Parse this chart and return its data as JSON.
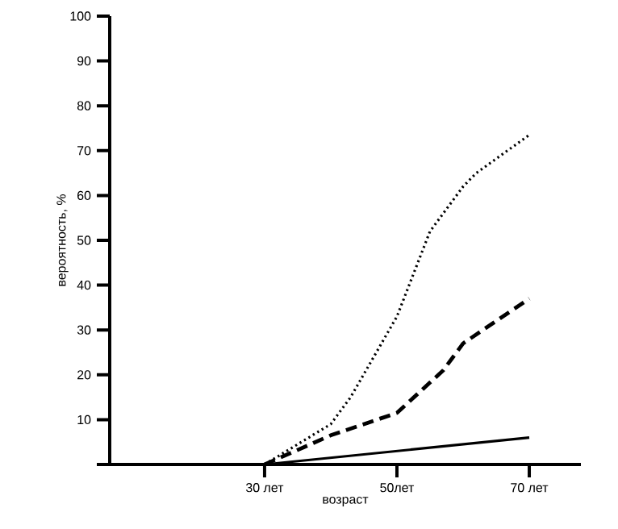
{
  "chart_data": {
    "type": "line",
    "xlabel": "возраст",
    "ylabel": "вероятность, %",
    "xlim": [
      6.6,
      77.8
    ],
    "ylim": [
      0,
      100
    ],
    "xticks": [
      {
        "value": 30,
        "label": "30 лет"
      },
      {
        "value": 50,
        "label": "50лет"
      },
      {
        "value": 70,
        "label": "70 лет"
      }
    ],
    "yticks": [
      {
        "value": 0,
        "label": null
      },
      10,
      20,
      30,
      40,
      50,
      60,
      70,
      80,
      90,
      100
    ],
    "series": [
      {
        "x": [
          30,
          50,
          70
        ],
        "values": [
          0,
          3,
          6
        ],
        "color": "#000000",
        "line_style": "solid"
      },
      {
        "x": [
          30,
          40,
          50,
          57,
          60,
          70
        ],
        "values": [
          0,
          6.5,
          11.5,
          21,
          27,
          37
        ],
        "color": "#000000",
        "line_style": "dashed"
      },
      {
        "x": [
          30,
          40,
          43,
          50,
          55,
          60,
          62,
          70
        ],
        "values": [
          0,
          9,
          15,
          33,
          52,
          62,
          65,
          73.5
        ],
        "color": "#000000",
        "line_style": "dotted"
      }
    ]
  }
}
